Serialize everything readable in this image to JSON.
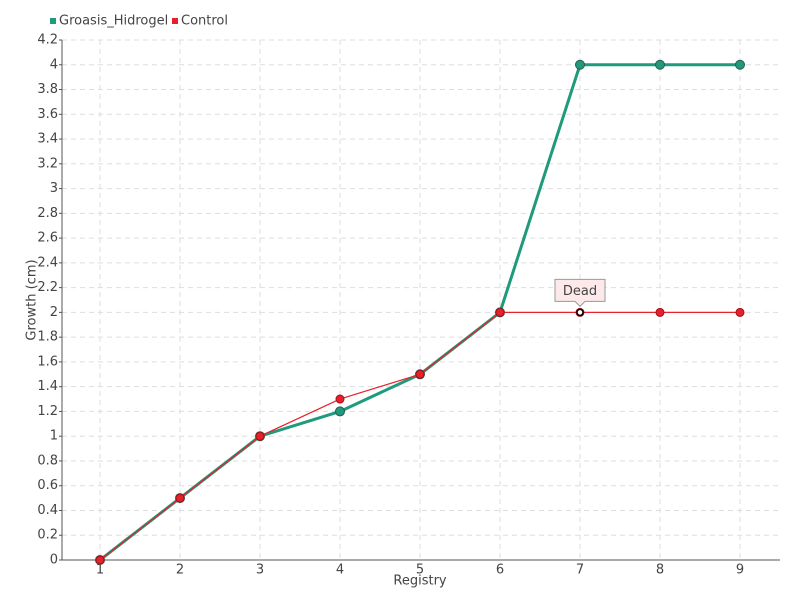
{
  "chart_data": {
    "type": "line",
    "x_label": "Registry",
    "y_label": "Growth (cm)",
    "categories": [
      "1",
      "2",
      "3",
      "4",
      "5",
      "6",
      "7",
      "8",
      "9"
    ],
    "series": [
      {
        "name": "Groasis_Hidrogel",
        "color": "#1f9a7c",
        "values": [
          0,
          0.5,
          1,
          1.2,
          1.5,
          2,
          4,
          4,
          4
        ]
      },
      {
        "name": "Control",
        "color": "#e8202a",
        "values": [
          0,
          0.5,
          1,
          1.3,
          1.5,
          2,
          2,
          2,
          2
        ]
      }
    ],
    "ylim": [
      0,
      4.2
    ],
    "yticks": [
      0,
      0.2,
      0.4,
      0.6,
      0.8,
      1,
      1.2,
      1.4,
      1.6,
      1.8,
      2,
      2.2,
      2.4,
      2.6,
      2.8,
      3,
      3.2,
      3.4,
      3.6,
      3.8,
      4,
      4.2
    ],
    "grid": true,
    "legend": "top-left",
    "annotations": [
      {
        "text": "Dead",
        "category": "7",
        "value": 2
      }
    ]
  }
}
